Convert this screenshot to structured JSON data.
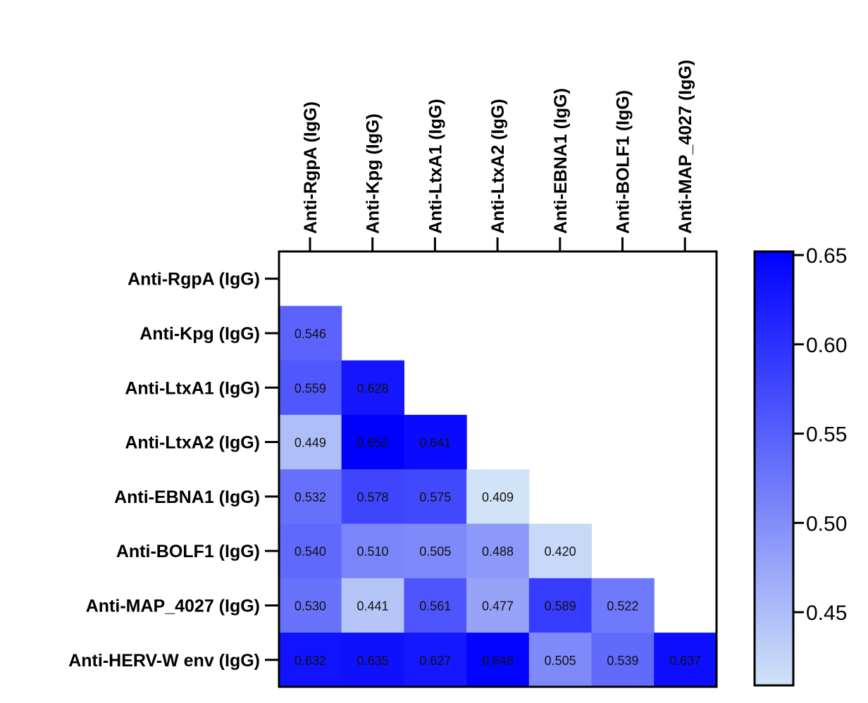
{
  "chart_data": {
    "type": "heatmap",
    "title": "",
    "xlabel": "",
    "ylabel": "",
    "columns": [
      "Anti-RgpA (IgG)",
      "Anti-Kpg (IgG)",
      "Anti-LtxA1 (IgG)",
      "Anti-LtxA2 (IgG)",
      "Anti-EBNA1 (IgG)",
      "Anti-BOLF1 (IgG)",
      "Anti-MAP_4027 (IgG)"
    ],
    "rows": [
      "Anti-RgpA (IgG)",
      "Anti-Kpg (IgG)",
      "Anti-LtxA1 (IgG)",
      "Anti-LtxA2 (IgG)",
      "Anti-EBNA1 (IgG)",
      "Anti-BOLF1 (IgG)",
      "Anti-MAP_4027 (IgG)",
      "Anti-HERV-W env (IgG)"
    ],
    "values": [
      [],
      [
        "0.546"
      ],
      [
        "0.559",
        "0.628"
      ],
      [
        "0.449",
        "0.652",
        "0.641"
      ],
      [
        "0.532",
        "0.578",
        "0.575",
        "0.409"
      ],
      [
        "0.540",
        "0.510",
        "0.505",
        "0.488",
        "0.420"
      ],
      [
        "0.530",
        "0.441",
        "0.561",
        "0.477",
        "0.589",
        "0.522"
      ],
      [
        "0.632",
        "0.635",
        "0.627",
        "0.648",
        "0.505",
        "0.539",
        "0.637"
      ]
    ],
    "colorbar": {
      "min": 0.409,
      "max": 0.652,
      "ticks": [
        "0.45",
        "0.50",
        "0.55",
        "0.60",
        "0.65"
      ],
      "low_color": "#d0e3f7",
      "high_color": "#0000ff"
    }
  }
}
